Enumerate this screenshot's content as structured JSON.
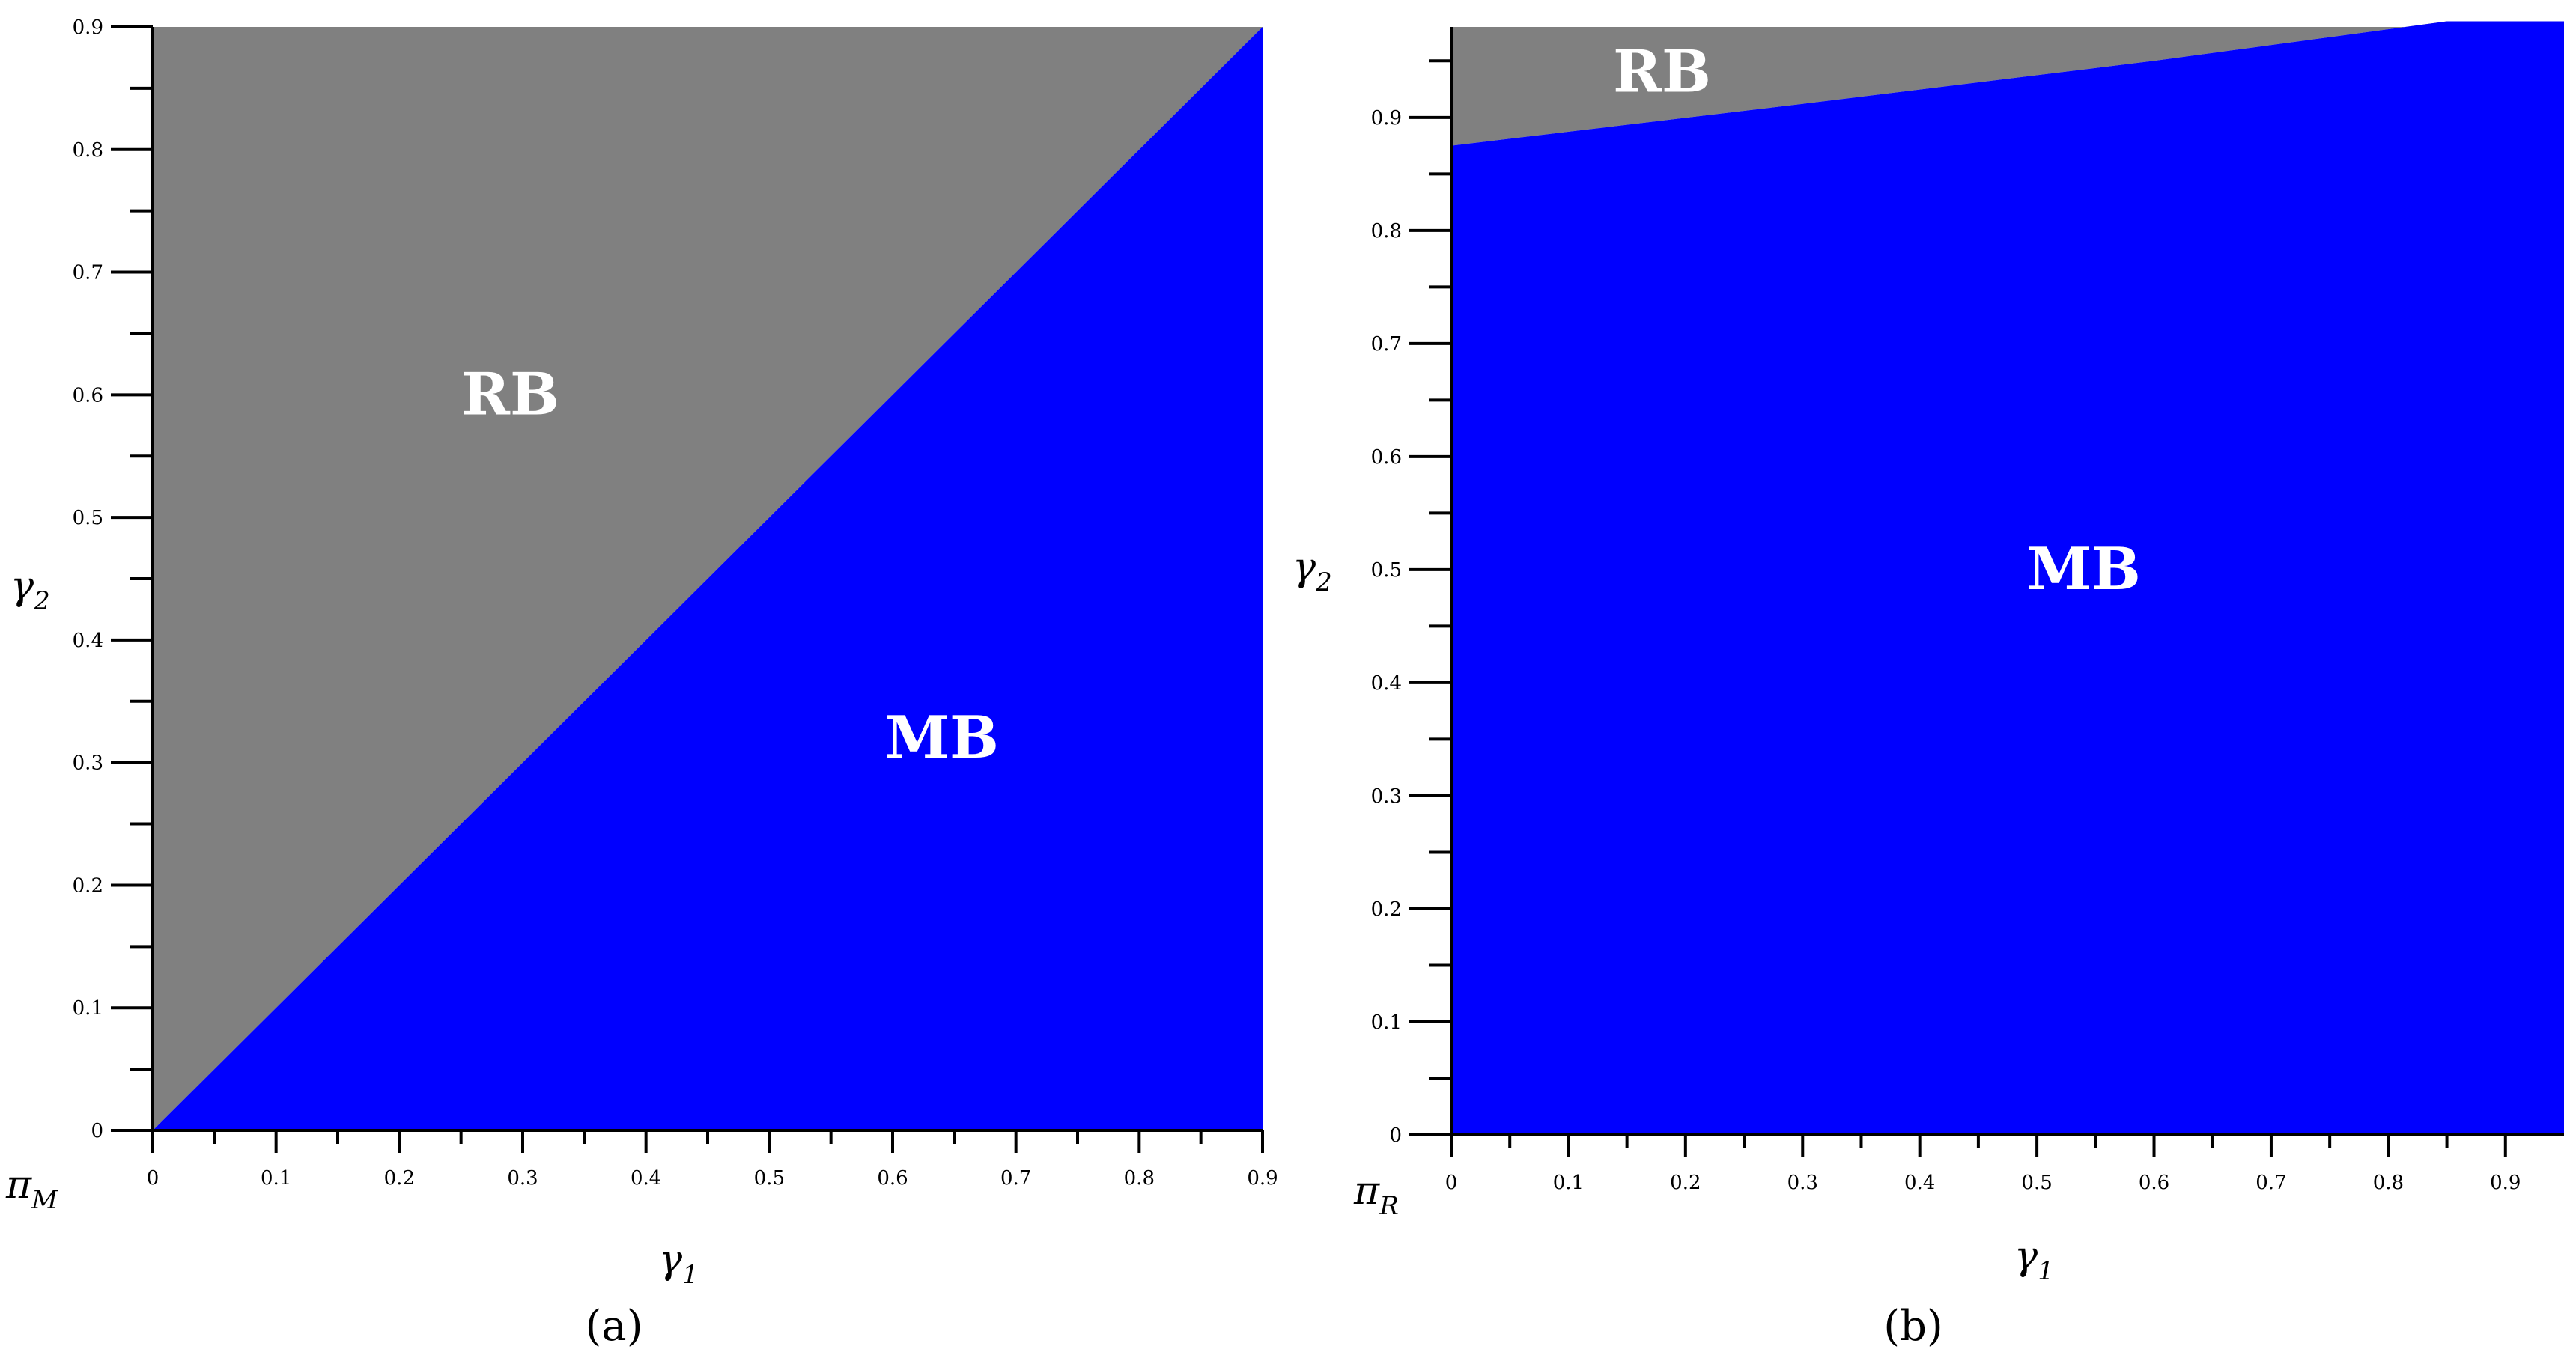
{
  "colors": {
    "rb_region": "#808080",
    "mb_region": "#0000ff",
    "axis": "#000000"
  },
  "chart_data": [
    {
      "type": "heatmap",
      "caption": "(a)",
      "xlabel": {
        "main": "γ",
        "sub": "1"
      },
      "ylabel": {
        "main": "γ",
        "sub": "2"
      },
      "corner_label": {
        "main": "π",
        "sub": "M"
      },
      "xlim": [
        0,
        0.9
      ],
      "ylim": [
        0,
        0.9
      ],
      "xticks": [
        "0",
        "0.1",
        "0.2",
        "0.3",
        "0.4",
        "0.5",
        "0.6",
        "0.7",
        "0.8",
        "0.9"
      ],
      "yticks": [
        "0",
        "0.1",
        "0.2",
        "0.3",
        "0.4",
        "0.5",
        "0.6",
        "0.7",
        "0.8",
        "0.9"
      ],
      "boundary": {
        "x": [
          0,
          0.9
        ],
        "y": [
          0,
          0.9
        ]
      },
      "regions": [
        {
          "label": "RB",
          "side": "above",
          "label_x": 0.29,
          "label_y": 0.6
        },
        {
          "label": "MB",
          "side": "below",
          "label_x": 0.64,
          "label_y": 0.32
        }
      ]
    },
    {
      "type": "heatmap",
      "caption": "(b)",
      "xlabel": {
        "main": "γ",
        "sub": "1"
      },
      "ylabel": {
        "main": "γ",
        "sub": "2"
      },
      "corner_label": {
        "main": "π",
        "sub": "R"
      },
      "xlim": [
        0,
        0.95
      ],
      "ylim": [
        0,
        0.98
      ],
      "xticks": [
        "0",
        "0.1",
        "0.2",
        "0.3",
        "0.4",
        "0.5",
        "0.6",
        "0.7",
        "0.8",
        "0.9"
      ],
      "yticks": [
        "0",
        "0.1",
        "0.2",
        "0.3",
        "0.4",
        "0.5",
        "0.6",
        "0.7",
        "0.8",
        "0.9"
      ],
      "boundary": {
        "x": [
          0,
          0.3,
          0.6,
          0.85,
          0.95
        ],
        "y": [
          0.875,
          0.912,
          0.95,
          0.985,
          0.985
        ]
      },
      "regions": [
        {
          "label": "RB",
          "side": "above",
          "label_x": 0.18,
          "label_y": 0.94
        },
        {
          "label": "MB",
          "side": "below",
          "label_x": 0.54,
          "label_y": 0.5
        }
      ]
    }
  ]
}
